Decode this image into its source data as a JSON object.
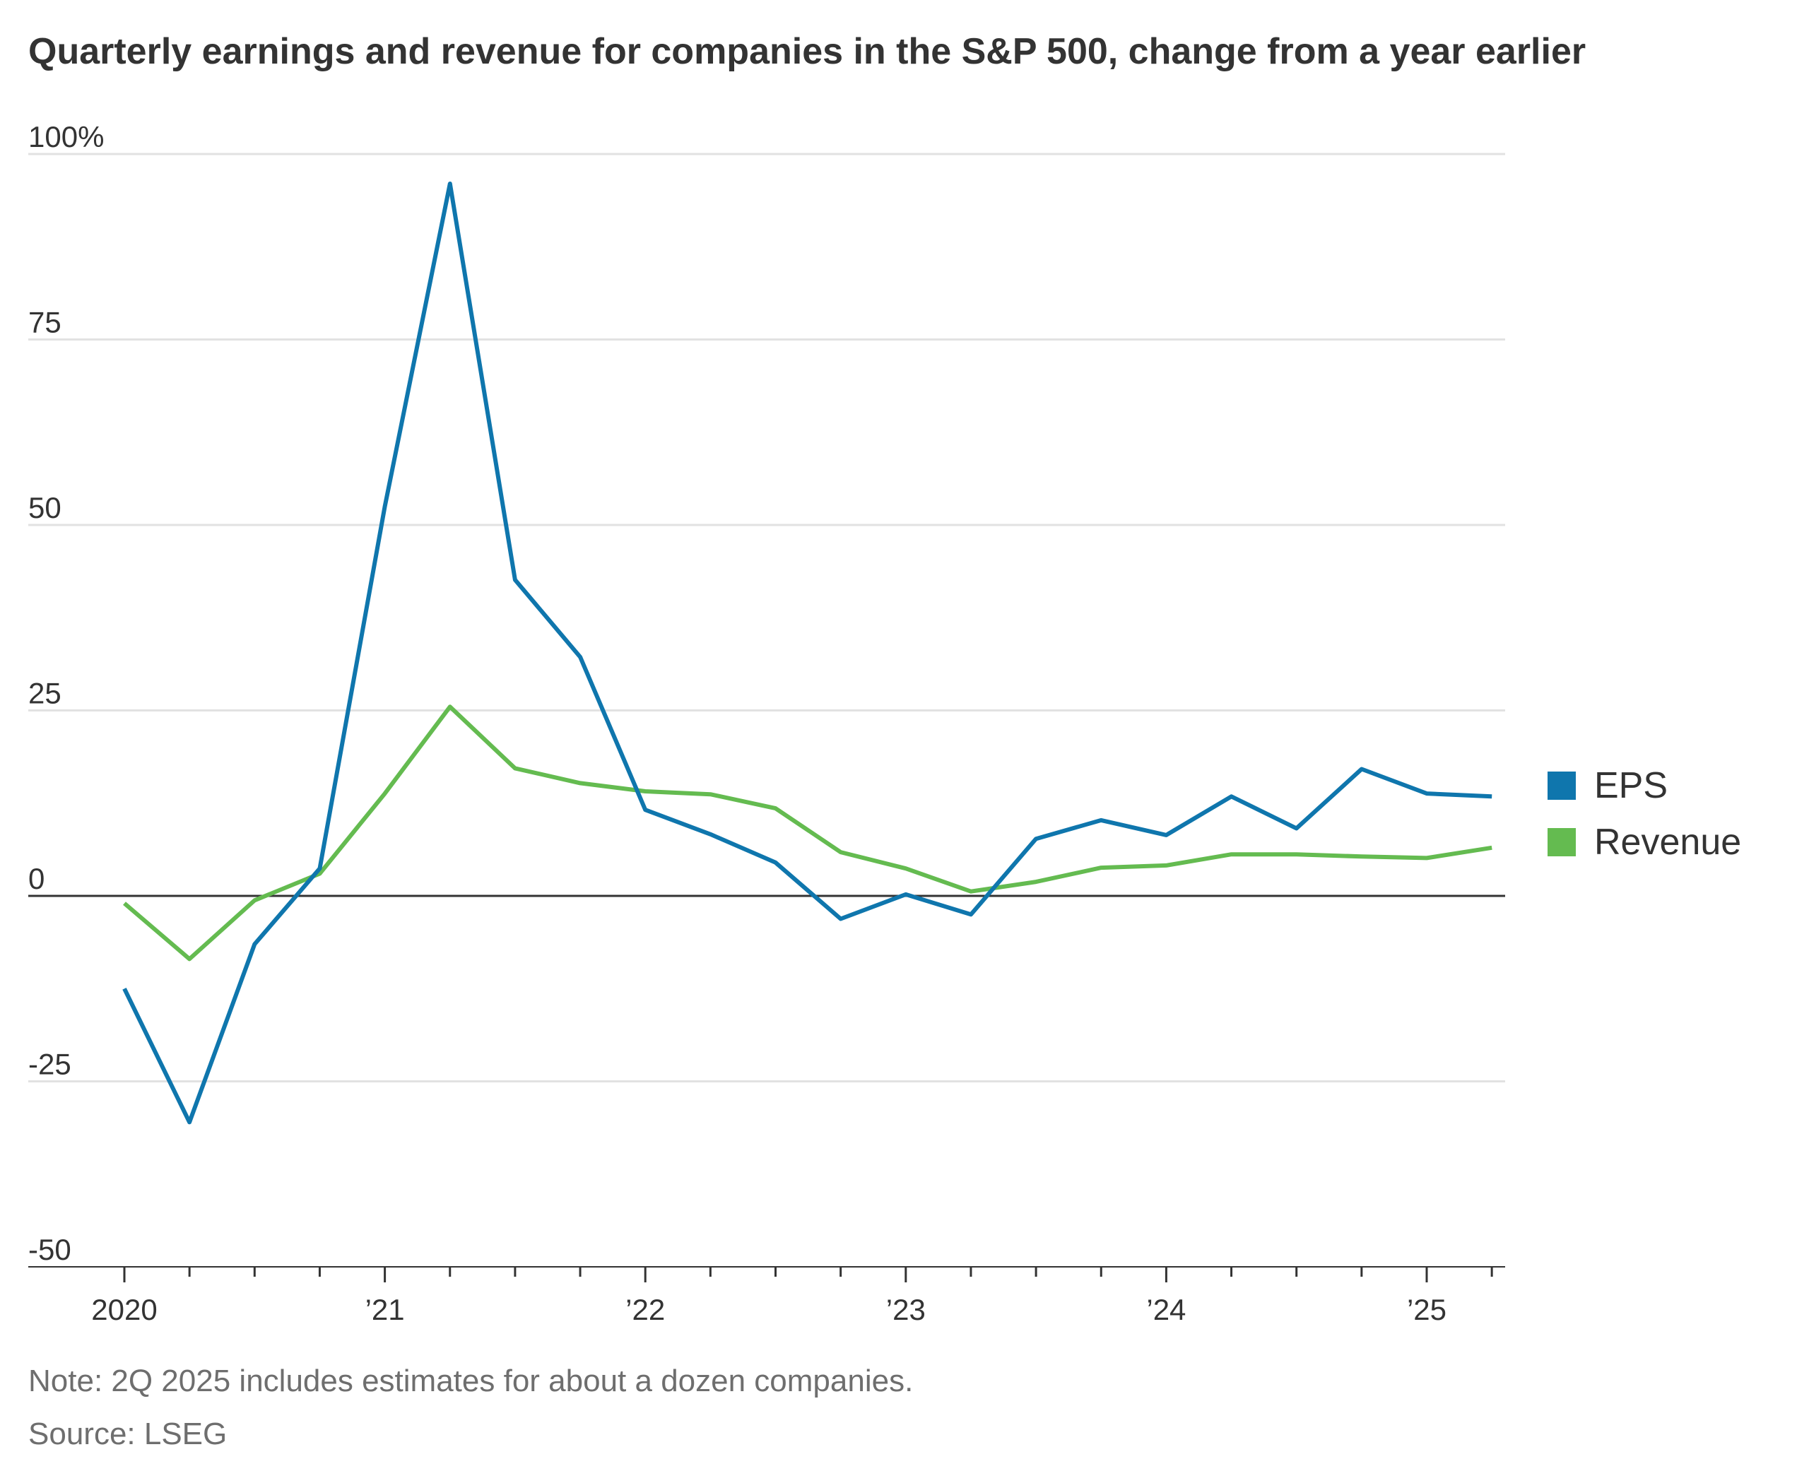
{
  "title": "Quarterly earnings and revenue for companies in the S&P 500, change from a year earlier",
  "note": "Note: 2Q 2025 includes estimates for about a dozen companies.",
  "source": "Source: LSEG",
  "colors": {
    "eps": "#0f76ad",
    "revenue": "#64bb50",
    "grid": "#e2e2e2",
    "zero_line": "#333333",
    "text": "#333333",
    "footnote": "#6e6e6e"
  },
  "chart_data": {
    "type": "line",
    "title": "Quarterly earnings and revenue for companies in the S&P 500, change from a year earlier",
    "xlabel": "",
    "ylabel": "",
    "ylim": [
      -50,
      100
    ],
    "y_ticks": [
      -50,
      -25,
      0,
      25,
      50,
      75,
      100
    ],
    "y_tick_labels": [
      "-50",
      "-25",
      "0",
      "25",
      "50",
      "75",
      "100%"
    ],
    "grid": true,
    "legend_position": "right",
    "x": [
      "1Q 2020",
      "2Q 2020",
      "3Q 2020",
      "4Q 2020",
      "1Q 2021",
      "2Q 2021",
      "3Q 2021",
      "4Q 2021",
      "1Q 2022",
      "2Q 2022",
      "3Q 2022",
      "4Q 2022",
      "1Q 2023",
      "2Q 2023",
      "3Q 2023",
      "4Q 2023",
      "1Q 2024",
      "2Q 2024",
      "3Q 2024",
      "4Q 2024",
      "1Q 2025",
      "2Q 2025"
    ],
    "x_tick_labels": [
      "2020",
      "’21",
      "’22",
      "’23",
      "’24",
      "’25"
    ],
    "series": [
      {
        "name": "EPS",
        "color": "#0f76ad",
        "values": [
          -12.5,
          -30.5,
          -6.5,
          3.7,
          52.5,
          96.0,
          42.6,
          32.2,
          11.6,
          8.3,
          4.5,
          -3.1,
          0.2,
          -2.5,
          7.7,
          10.2,
          8.2,
          13.4,
          9.1,
          17.1,
          13.8,
          13.4
        ]
      },
      {
        "name": "Revenue",
        "color": "#64bb50",
        "values": [
          -1.0,
          -8.5,
          -0.6,
          3.0,
          13.8,
          25.5,
          17.2,
          15.2,
          14.1,
          13.7,
          11.8,
          5.9,
          3.7,
          0.6,
          1.9,
          3.8,
          4.1,
          5.6,
          5.6,
          5.3,
          5.1,
          6.5
        ]
      }
    ]
  }
}
